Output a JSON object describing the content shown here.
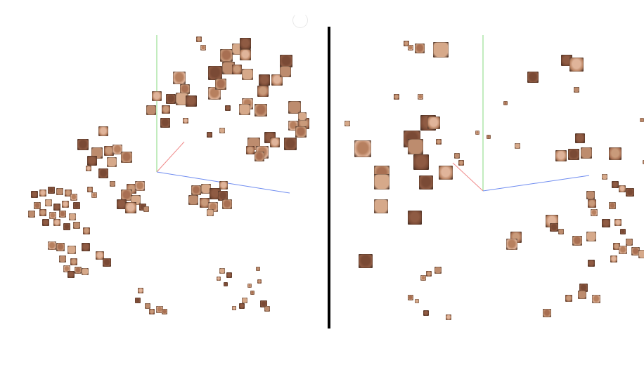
{
  "colors": {
    "background": "#ffffff",
    "divider": "#000000",
    "x_axis": "#f08a8a",
    "y_axis": "#86d97c",
    "z_axis": "#6f8cf0",
    "skin_tones": [
      "#c99a7a",
      "#b7805f",
      "#a86f52",
      "#d6a98a",
      "#8f5b43",
      "#e0b49a",
      "#7a4a35",
      "#bd8c6e"
    ]
  },
  "panels": [
    {
      "id": "left",
      "view": "3d-embedding-scatter",
      "marker": "face-thumbnail"
    },
    {
      "id": "right",
      "view": "3d-embedding-scatter",
      "marker": "face-thumbnail"
    }
  ]
}
